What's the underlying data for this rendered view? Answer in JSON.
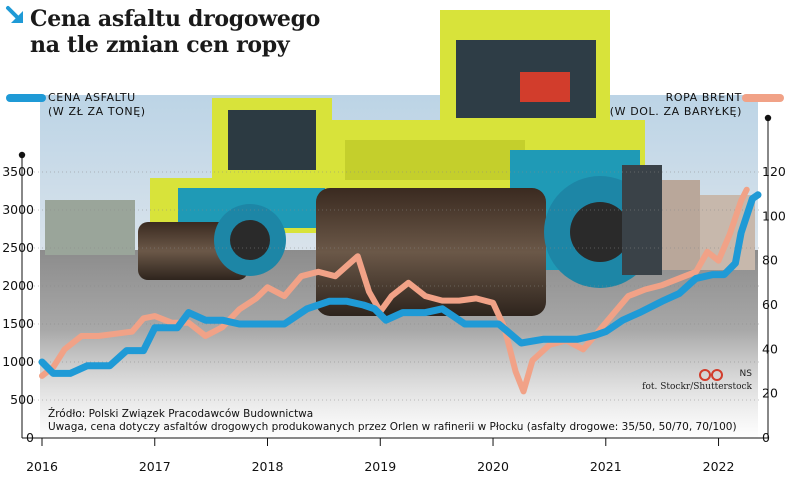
{
  "title_line1": "Cena asfaltu drogowego",
  "title_line2": "na tle zmian cen ropy",
  "legend_left": {
    "line1": "CENA ASFALTU",
    "line2": "(W ZŁ ZA TONĘ)"
  },
  "legend_right": {
    "line1": "ROPA BRENT",
    "line2": "(W DOL. ZA BARYŁKĘ)"
  },
  "source": "Źródło: Polski Związek Pracodawców Budownictwa",
  "note": "Uwaga, cena dotyczy asfaltów drogowych produkowanych przez Orlen w rafinerii w Płocku (asfalty drogowe: 35/50, 50/70, 70/100)",
  "logo_text": "NS",
  "photo_credit": "fot. Stockr/Shutterstock",
  "icons": {
    "title_marker": "arrow-down-right-icon",
    "logo": "cc-logo-icon"
  },
  "colors": {
    "asphalt": "#1f9ad6",
    "brent": "#f1a287",
    "arrow": "#1f9ad6"
  },
  "chart_data": {
    "type": "line",
    "x_ticks": [
      "2016",
      "2017",
      "2018",
      "2019",
      "2020",
      "2021",
      "2022"
    ],
    "y_left": {
      "ticks": [
        0,
        500,
        1000,
        1500,
        2000,
        2500,
        3000,
        3500
      ],
      "range": [
        0,
        3500
      ]
    },
    "y_right": {
      "ticks": [
        0,
        20,
        40,
        60,
        80,
        100,
        120
      ],
      "range": [
        0,
        120
      ]
    },
    "series": [
      {
        "name": "CENA ASFALTU",
        "axis": "left",
        "points": [
          [
            2016.0,
            1000
          ],
          [
            2016.1,
            850
          ],
          [
            2016.25,
            850
          ],
          [
            2016.4,
            950
          ],
          [
            2016.6,
            950
          ],
          [
            2016.75,
            1150
          ],
          [
            2016.9,
            1150
          ],
          [
            2017.0,
            1450
          ],
          [
            2017.2,
            1450
          ],
          [
            2017.3,
            1650
          ],
          [
            2017.45,
            1550
          ],
          [
            2017.6,
            1550
          ],
          [
            2017.75,
            1500
          ],
          [
            2017.9,
            1500
          ],
          [
            2018.0,
            1500
          ],
          [
            2018.15,
            1500
          ],
          [
            2018.35,
            1700
          ],
          [
            2018.55,
            1800
          ],
          [
            2018.7,
            1800
          ],
          [
            2018.85,
            1750
          ],
          [
            2018.95,
            1700
          ],
          [
            2019.05,
            1550
          ],
          [
            2019.2,
            1650
          ],
          [
            2019.4,
            1650
          ],
          [
            2019.55,
            1700
          ],
          [
            2019.65,
            1600
          ],
          [
            2019.75,
            1500
          ],
          [
            2019.9,
            1500
          ],
          [
            2020.05,
            1500
          ],
          [
            2020.25,
            1250
          ],
          [
            2020.45,
            1300
          ],
          [
            2020.6,
            1300
          ],
          [
            2020.75,
            1300
          ],
          [
            2020.9,
            1350
          ],
          [
            2021.0,
            1400
          ],
          [
            2021.15,
            1550
          ],
          [
            2021.3,
            1650
          ],
          [
            2021.5,
            1800
          ],
          [
            2021.65,
            1900
          ],
          [
            2021.8,
            2100
          ],
          [
            2021.95,
            2150
          ],
          [
            2022.05,
            2150
          ],
          [
            2022.15,
            2300
          ],
          [
            2022.2,
            2700
          ],
          [
            2022.3,
            3150
          ],
          [
            2022.35,
            3200
          ]
        ]
      },
      {
        "name": "ROPA BRENT",
        "axis": "right",
        "points": [
          [
            2016.0,
            28
          ],
          [
            2016.1,
            32
          ],
          [
            2016.2,
            40
          ],
          [
            2016.35,
            46
          ],
          [
            2016.5,
            46
          ],
          [
            2016.65,
            47
          ],
          [
            2016.8,
            48
          ],
          [
            2016.9,
            54
          ],
          [
            2017.0,
            55
          ],
          [
            2017.15,
            52
          ],
          [
            2017.3,
            52
          ],
          [
            2017.45,
            46
          ],
          [
            2017.6,
            50
          ],
          [
            2017.75,
            58
          ],
          [
            2017.9,
            63
          ],
          [
            2018.0,
            68
          ],
          [
            2018.15,
            64
          ],
          [
            2018.3,
            73
          ],
          [
            2018.45,
            75
          ],
          [
            2018.6,
            73
          ],
          [
            2018.8,
            82
          ],
          [
            2018.9,
            66
          ],
          [
            2019.0,
            57
          ],
          [
            2019.1,
            64
          ],
          [
            2019.25,
            70
          ],
          [
            2019.4,
            64
          ],
          [
            2019.55,
            62
          ],
          [
            2019.7,
            62
          ],
          [
            2019.85,
            63
          ],
          [
            2020.0,
            61
          ],
          [
            2020.1,
            50
          ],
          [
            2020.2,
            30
          ],
          [
            2020.27,
            21
          ],
          [
            2020.35,
            35
          ],
          [
            2020.5,
            42
          ],
          [
            2020.65,
            44
          ],
          [
            2020.8,
            40
          ],
          [
            2020.95,
            49
          ],
          [
            2021.05,
            55
          ],
          [
            2021.2,
            64
          ],
          [
            2021.35,
            67
          ],
          [
            2021.5,
            69
          ],
          [
            2021.65,
            72
          ],
          [
            2021.8,
            75
          ],
          [
            2021.9,
            84
          ],
          [
            2022.0,
            80
          ],
          [
            2022.1,
            92
          ],
          [
            2022.2,
            107
          ],
          [
            2022.25,
            112
          ]
        ]
      }
    ]
  }
}
